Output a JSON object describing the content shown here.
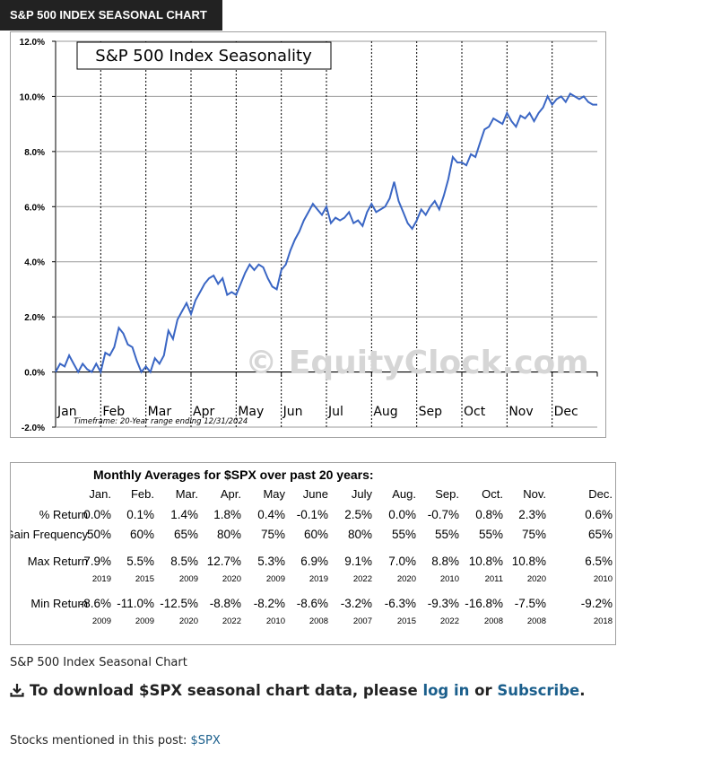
{
  "header": {
    "title": "S&P 500 INDEX SEASONAL CHART"
  },
  "chart_data": {
    "type": "line",
    "title": "S&P 500 Index Seasonality",
    "watermark": "© EquityClock.com",
    "note": "Timeframe: 20-Year range ending 12/31/2024",
    "ylim": [
      -2.0,
      12.0
    ],
    "yticks": [
      -2.0,
      0.0,
      2.0,
      4.0,
      6.0,
      8.0,
      10.0,
      12.0
    ],
    "ytick_labels": [
      "-2.0%",
      "0.0%",
      "2.0%",
      "4.0%",
      "6.0%",
      "8.0%",
      "10.0%",
      "12.0%"
    ],
    "months": [
      "Jan",
      "Feb",
      "Mar",
      "Apr",
      "May",
      "Jun",
      "Jul",
      "Aug",
      "Sep",
      "Oct",
      "Nov",
      "Dec"
    ],
    "grid": true,
    "line_color": "#3a66c4",
    "x": [
      0,
      0.1,
      0.2,
      0.3,
      0.4,
      0.5,
      0.6,
      0.7,
      0.8,
      0.9,
      1.0,
      1.1,
      1.2,
      1.3,
      1.4,
      1.5,
      1.6,
      1.7,
      1.8,
      1.9,
      2.0,
      2.1,
      2.2,
      2.3,
      2.4,
      2.5,
      2.6,
      2.7,
      2.8,
      2.9,
      3.0,
      3.1,
      3.2,
      3.3,
      3.4,
      3.5,
      3.6,
      3.7,
      3.8,
      3.9,
      4.0,
      4.1,
      4.2,
      4.3,
      4.4,
      4.5,
      4.6,
      4.7,
      4.8,
      4.9,
      5.0,
      5.1,
      5.2,
      5.3,
      5.4,
      5.5,
      5.6,
      5.7,
      5.8,
      5.9,
      6.0,
      6.1,
      6.2,
      6.3,
      6.4,
      6.5,
      6.6,
      6.7,
      6.8,
      6.9,
      7.0,
      7.1,
      7.2,
      7.3,
      7.4,
      7.5,
      7.6,
      7.7,
      7.8,
      7.9,
      8.0,
      8.1,
      8.2,
      8.3,
      8.4,
      8.5,
      8.6,
      8.7,
      8.8,
      8.9,
      9.0,
      9.1,
      9.2,
      9.3,
      9.4,
      9.5,
      9.6,
      9.7,
      9.8,
      9.9,
      10.0,
      10.1,
      10.2,
      10.3,
      10.4,
      10.5,
      10.6,
      10.7,
      10.8,
      10.9,
      11.0,
      11.1,
      11.2,
      11.3,
      11.4,
      11.5,
      11.6,
      11.7,
      11.8,
      11.9,
      12.0
    ],
    "y": [
      0.0,
      0.3,
      0.2,
      0.6,
      0.3,
      0.0,
      0.3,
      0.1,
      0.0,
      0.3,
      0.0,
      0.7,
      0.6,
      0.9,
      1.6,
      1.4,
      1.0,
      0.9,
      0.4,
      0.0,
      0.2,
      0.0,
      0.5,
      0.3,
      0.6,
      1.5,
      1.2,
      1.9,
      2.2,
      2.5,
      2.1,
      2.6,
      2.9,
      3.2,
      3.4,
      3.5,
      3.2,
      3.4,
      2.8,
      2.9,
      2.8,
      3.2,
      3.6,
      3.9,
      3.7,
      3.9,
      3.8,
      3.4,
      3.1,
      3.0,
      3.7,
      3.9,
      4.4,
      4.8,
      5.1,
      5.5,
      5.8,
      6.1,
      5.9,
      5.7,
      6.0,
      5.4,
      5.6,
      5.5,
      5.6,
      5.8,
      5.4,
      5.5,
      5.3,
      5.8,
      6.1,
      5.8,
      5.9,
      6.0,
      6.3,
      6.9,
      6.2,
      5.8,
      5.4,
      5.2,
      5.5,
      5.9,
      5.7,
      6.0,
      6.2,
      5.9,
      6.4,
      7.0,
      7.8,
      7.6,
      7.6,
      7.5,
      7.9,
      7.8,
      8.3,
      8.8,
      8.9,
      9.2,
      9.1,
      9.0,
      9.4,
      9.1,
      8.9,
      9.3,
      9.2,
      9.4,
      9.1,
      9.4,
      9.6,
      10.0,
      9.7,
      9.9,
      10.0,
      9.8,
      10.1,
      10.0,
      9.9,
      10.0,
      9.8,
      9.7,
      9.7
    ]
  },
  "monthly_table": {
    "title": "Monthly Averages for $SPX over past 20 years:",
    "months": [
      "Jan.",
      "Feb.",
      "Mar.",
      "Apr.",
      "May",
      "June",
      "July",
      "Aug.",
      "Sep.",
      "Oct.",
      "Nov.",
      "Dec."
    ],
    "rows": {
      "return": {
        "label": "% Return",
        "values": [
          "0.0%",
          "0.1%",
          "1.4%",
          "1.8%",
          "0.4%",
          "-0.1%",
          "2.5%",
          "0.0%",
          "-0.7%",
          "0.8%",
          "2.3%",
          "0.6%"
        ]
      },
      "gain_frequency": {
        "label": "Gain Frequency",
        "values": [
          "50%",
          "60%",
          "65%",
          "80%",
          "75%",
          "60%",
          "80%",
          "55%",
          "55%",
          "55%",
          "75%",
          "65%"
        ]
      },
      "max_return": {
        "label": "Max Return",
        "values": [
          "7.9%",
          "5.5%",
          "8.5%",
          "12.7%",
          "5.3%",
          "6.9%",
          "9.1%",
          "7.0%",
          "8.8%",
          "10.8%",
          "10.8%",
          "6.5%"
        ],
        "years": [
          "2019",
          "2015",
          "2009",
          "2020",
          "2009",
          "2019",
          "2022",
          "2020",
          "2010",
          "2011",
          "2020",
          "2010"
        ]
      },
      "min_return": {
        "label": "Min Return",
        "values": [
          "-8.6%",
          "-11.0%",
          "-12.5%",
          "-8.8%",
          "-8.2%",
          "-8.6%",
          "-3.2%",
          "-6.3%",
          "-9.3%",
          "-16.8%",
          "-7.5%",
          "-9.2%"
        ],
        "years": [
          "2009",
          "2009",
          "2020",
          "2022",
          "2010",
          "2008",
          "2007",
          "2015",
          "2022",
          "2008",
          "2008",
          "2018"
        ]
      }
    }
  },
  "caption": "S&P 500 Index Seasonal Chart",
  "download": {
    "icon": "download-icon",
    "prefix": "To download $SPX seasonal chart data, please ",
    "login_label": "log in",
    "middle": " or ",
    "subscribe_label": "Subscribe",
    "suffix": "."
  },
  "stocks": {
    "label": "Stocks mentioned in this post: ",
    "ticker": "$SPX"
  }
}
